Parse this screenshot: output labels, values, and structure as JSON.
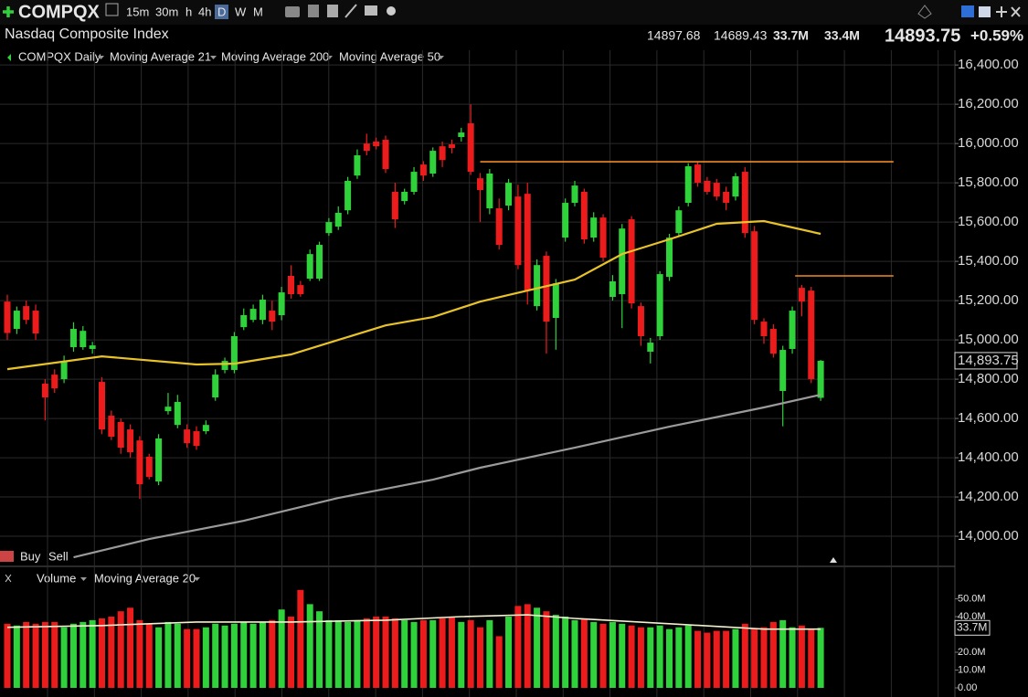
{
  "header": {
    "symbol": "COMPQX",
    "intervals": [
      "15m",
      "30m",
      "h",
      "4h",
      "D",
      "W",
      "M"
    ],
    "name": "Nasdaq Composite Index",
    "high": "14897.68",
    "low": "14689.43",
    "volume": "33.7M",
    "avg_volume": "33.4M",
    "last": "14893.75",
    "change": "+0.59%",
    "buy": "Buy",
    "sell": "Sell"
  },
  "chart_data": {
    "type": "candlestick",
    "ylim": [
      13870,
      16475
    ],
    "yticks": [
      {
        "value": 16400,
        "label": "16,400.00"
      },
      {
        "value": 16200,
        "label": "16,200.00"
      },
      {
        "value": 16000,
        "label": "16,000.00"
      },
      {
        "value": 15800,
        "label": "15,800.00"
      },
      {
        "value": 15600,
        "label": "15,600.00"
      },
      {
        "value": 15400,
        "label": "15,400.00"
      },
      {
        "value": 15200,
        "label": "15,200.00"
      },
      {
        "value": 15000,
        "label": "15,000.00"
      },
      {
        "value": 14800,
        "label": "14,800.00"
      },
      {
        "value": 14600,
        "label": "14,600.00"
      },
      {
        "value": 14400,
        "label": "14,400.00"
      },
      {
        "value": 14200,
        "label": "14,200.00"
      },
      {
        "value": 14000,
        "label": "14,000.00"
      }
    ],
    "grid": true,
    "up_color": "#2fd23a",
    "down_color": "#ec1c1c",
    "last_price_label": "14,893.75",
    "series": [
      {
        "name": "COMPQX Daily",
        "color": "#2fd23a",
        "open": [
          15195,
          15056,
          15172,
          15149,
          14777,
          14823,
          14800,
          14963,
          14963,
          14954,
          14786,
          14614,
          14582,
          14544,
          14488,
          14405,
          14279,
          14637,
          14567,
          14544,
          14535,
          14535,
          14707,
          14847,
          14847,
          15065,
          15102,
          15102,
          15149,
          15126,
          15326,
          15279,
          15312,
          15312,
          15544,
          15577,
          15660,
          15837,
          16000,
          16010,
          16019,
          15754,
          15707,
          15754,
          15893,
          15847,
          15986,
          15996,
          16033,
          16103,
          15823,
          15670,
          15670,
          15684,
          15730,
          15744,
          15172,
          15428,
          15112,
          15521,
          15698,
          15754,
          15521,
          15623,
          15219,
          15233,
          15614,
          15172,
          14940,
          15019,
          15321,
          15544,
          15698,
          15893,
          15810,
          15800,
          15754,
          15730,
          15856,
          15553,
          15093,
          15056,
          14740,
          14954,
          15265,
          15251,
          14705
        ],
        "high": [
          15230,
          15170,
          15200,
          15180,
          14800,
          14850,
          14920,
          15090,
          15070,
          14990,
          14810,
          14640,
          14600,
          14570,
          14510,
          14420,
          14520,
          14730,
          14720,
          14570,
          14560,
          14590,
          14850,
          14910,
          15040,
          15160,
          15180,
          15230,
          15200,
          15270,
          15380,
          15300,
          15460,
          15500,
          15620,
          15680,
          15830,
          15970,
          16050,
          16030,
          16040,
          15800,
          15770,
          15880,
          15910,
          15980,
          16010,
          16020,
          16080,
          16200,
          15850,
          15870,
          15720,
          15820,
          15790,
          15800,
          15410,
          15450,
          15310,
          15720,
          15810,
          15770,
          15650,
          15640,
          15330,
          15590,
          15630,
          15190,
          15010,
          15350,
          15540,
          15680,
          15900,
          15910,
          15830,
          15820,
          15780,
          15850,
          15880,
          15580,
          15110,
          15080,
          14970,
          15170,
          15280,
          15270,
          14897.68
        ],
        "low": [
          15000,
          15030,
          15080,
          15000,
          14590,
          14730,
          14780,
          14940,
          14950,
          14930,
          14520,
          14490,
          14420,
          14400,
          14190,
          14290,
          14260,
          14620,
          14550,
          14450,
          14440,
          14520,
          14690,
          14830,
          14830,
          15050,
          15090,
          15080,
          15050,
          15100,
          15210,
          15220,
          15300,
          15300,
          15530,
          15560,
          15640,
          15820,
          15940,
          15970,
          15850,
          15570,
          15690,
          15740,
          15810,
          15830,
          15880,
          15950,
          16010,
          15840,
          15600,
          15640,
          15460,
          15660,
          15360,
          15180,
          15150,
          14930,
          14950,
          15500,
          15680,
          15490,
          15500,
          15400,
          15200,
          15060,
          15160,
          14970,
          14880,
          15000,
          15300,
          15530,
          15680,
          15780,
          15740,
          15710,
          15660,
          15710,
          15520,
          15080,
          14980,
          14910,
          14560,
          14930,
          15120,
          14780,
          14689.43
        ],
        "close": [
          15035,
          15149,
          15102,
          15033,
          14707,
          14753,
          14893,
          15056,
          15046,
          14972,
          14544,
          14507,
          14451,
          14428,
          14265,
          14302,
          14498,
          14660,
          14684,
          14474,
          14460,
          14567,
          14823,
          14893,
          15019,
          15126,
          15158,
          15205,
          15093,
          15242,
          15233,
          15233,
          15437,
          15484,
          15600,
          15647,
          15810,
          15940,
          15963,
          15986,
          15870,
          15614,
          15754,
          15856,
          15837,
          15963,
          15916,
          15977,
          16056,
          15856,
          15763,
          15847,
          15484,
          15800,
          15381,
          15251,
          15381,
          15093,
          15288,
          15698,
          15786,
          15512,
          15623,
          15419,
          15298,
          15567,
          15186,
          15019,
          14986,
          15335,
          15521,
          15660,
          15884,
          15800,
          15754,
          15730,
          15698,
          15833,
          15544,
          15102,
          15019,
          14930,
          14949,
          15149,
          15195,
          14800,
          14893.75
        ]
      },
      {
        "name": "Moving Average 21",
        "color": "#36c6dc"
      },
      {
        "name": "Moving Average 200",
        "color": "#9a9a9a",
        "x": [
          7,
          15,
          25,
          35,
          45,
          50,
          60,
          70,
          80,
          86
        ],
        "values": [
          13893,
          13986,
          14079,
          14195,
          14288,
          14349,
          14451,
          14558,
          14656,
          14721
        ]
      },
      {
        "name": "Moving Average 50",
        "color": "#e8c229",
        "x": [
          0,
          10,
          20,
          24,
          30,
          35,
          40,
          45,
          50,
          55,
          60,
          65,
          70,
          75,
          80,
          86
        ],
        "values": [
          14851,
          14916,
          14875,
          14879,
          14926,
          15000,
          15074,
          15116,
          15195,
          15251,
          15307,
          15437,
          15512,
          15591,
          15605,
          15540
        ]
      }
    ],
    "levels": [
      {
        "value": 15907,
        "from": 50,
        "to": 93.7,
        "color": "#f08a24"
      },
      {
        "value": 15326,
        "from": 83.3,
        "to": 93.7,
        "color": "#f08a24"
      }
    ],
    "volume": {
      "name": "Volume",
      "ylim": [
        0,
        55.4
      ],
      "yticks": [
        {
          "value": 50,
          "label": "50.0M"
        },
        {
          "value": 40,
          "label": "40.0M"
        },
        {
          "value": 20,
          "label": "20.0M"
        },
        {
          "value": 10,
          "label": "10.0M"
        },
        {
          "value": 0,
          "label": "0.00"
        }
      ],
      "values": [
        36,
        35,
        37,
        36,
        37,
        37,
        34,
        36,
        37,
        38,
        39,
        40,
        43,
        45,
        38,
        36,
        34,
        37,
        36,
        33,
        33,
        34,
        36,
        35,
        36,
        37,
        36,
        37,
        38,
        44,
        40,
        55,
        47,
        43,
        38,
        38,
        37,
        38,
        39,
        40,
        40,
        39,
        38,
        37,
        38,
        38,
        39,
        40,
        37,
        38,
        34,
        38,
        29,
        40,
        46,
        47,
        45,
        43,
        41,
        40,
        38,
        39,
        37,
        36,
        37,
        36,
        35,
        34,
        34,
        35,
        33,
        34,
        35,
        32,
        31,
        32,
        32,
        33,
        36,
        33,
        34,
        37,
        38,
        34,
        35,
        33,
        33.7
      ],
      "ma": {
        "name": "Moving Average 20",
        "color": "#f3f0d0",
        "x": [
          0,
          10,
          20,
          30,
          40,
          48,
          55,
          60,
          70,
          80,
          86
        ],
        "values": [
          34,
          35,
          37,
          37,
          38,
          40,
          41,
          39,
          36,
          33,
          33
        ]
      }
    }
  }
}
